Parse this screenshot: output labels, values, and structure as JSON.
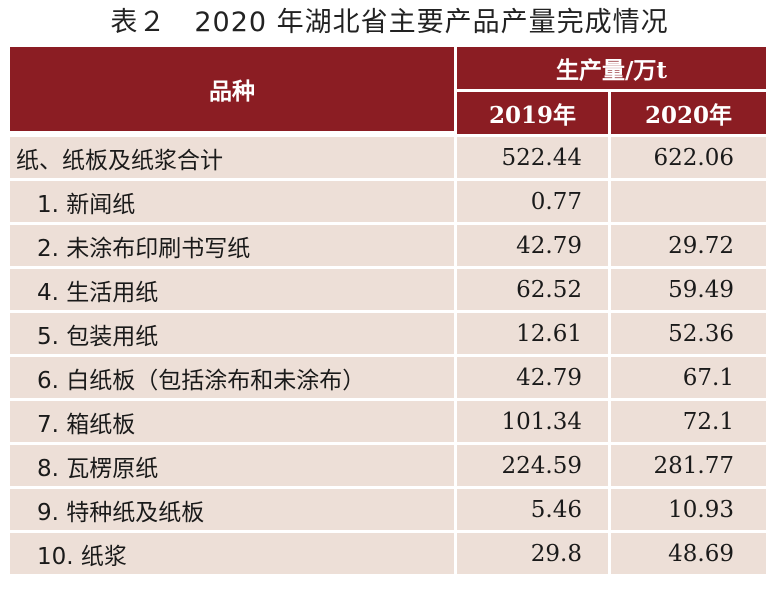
{
  "title": "表２　2020 年湖北省主要产品产量完成情况",
  "header": {
    "category": "品种",
    "production_group": "生产量/万t",
    "year_2019": "2019年",
    "year_2020": "2020年"
  },
  "rows": [
    {
      "name": "纸、纸板及纸浆合计",
      "v2019": "522.44",
      "v2020": "622.06"
    },
    {
      "name": "1. 新闻纸",
      "v2019": "0.77",
      "v2020": ""
    },
    {
      "name": "2. 未涂布印刷书写纸",
      "v2019": "42.79",
      "v2020": "29.72"
    },
    {
      "name": "4. 生活用纸",
      "v2019": "62.52",
      "v2020": "59.49"
    },
    {
      "name": "5. 包装用纸",
      "v2019": "12.61",
      "v2020": "52.36"
    },
    {
      "name": "6. 白纸板（包括涂布和未涂布）",
      "v2019": "42.79",
      "v2020": "67.1"
    },
    {
      "name": "7. 箱纸板",
      "v2019": "101.34",
      "v2020": "72.1"
    },
    {
      "name": "8. 瓦楞原纸",
      "v2019": "224.59",
      "v2020": "281.77"
    },
    {
      "name": "9. 特种纸及纸板",
      "v2019": "5.46",
      "v2020": "10.93"
    },
    {
      "name": "10. 纸浆",
      "v2019": "29.8",
      "v2020": "48.69"
    }
  ],
  "colors": {
    "header_bg": "#8b1d23",
    "row_bg": "#eddfd7"
  }
}
